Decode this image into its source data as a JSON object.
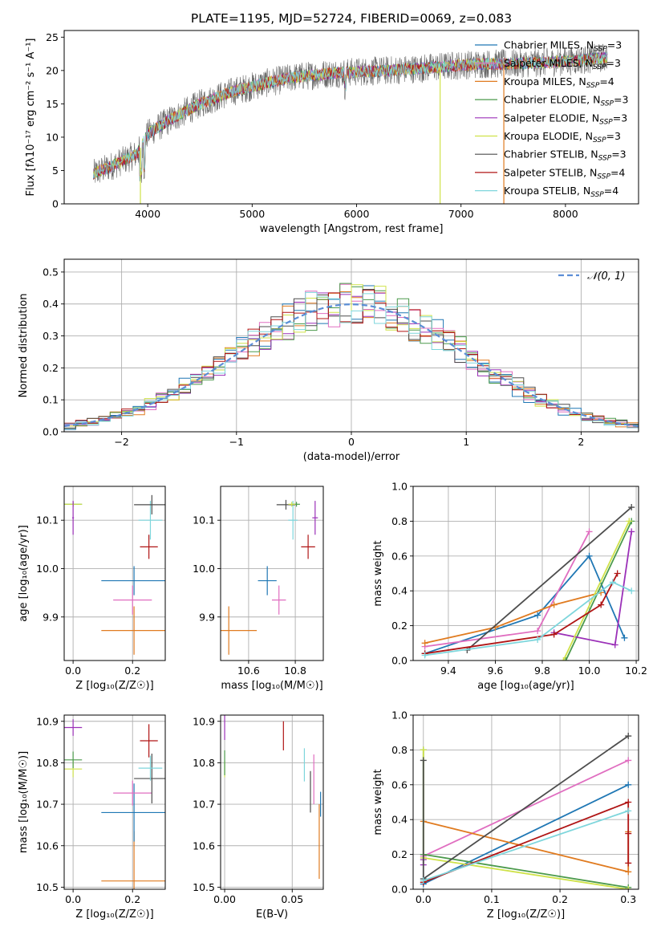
{
  "figure": {
    "title": "PLATE=1195, MJD=52724, FIBERID=0069, z=0.083"
  },
  "colors": {
    "chabrier_miles": "#1f77b4",
    "salpeter_miles": "#e06ec0",
    "kroupa_miles": "#e07b20",
    "chabrier_elodie": "#4b9a4b",
    "salpeter_elodie": "#9b30b8",
    "kroupa_elodie": "#cfe24a",
    "chabrier_stelib": "#4d4d4d",
    "salpeter_stelib": "#b01515",
    "kroupa_stelib": "#7ed6dc",
    "normal": "#5b8ed6",
    "grid": "#b0b0b0"
  },
  "chart_data": [
    {
      "id": "spectrum",
      "type": "line",
      "title": "PLATE=1195, MJD=52724, FIBERID=0069, z=0.083",
      "xlabel": "wavelength [Angstrom, rest frame]",
      "ylabel": "Flux [fλ10⁻¹⁷ erg cm⁻² s⁻¹ A⁻¹]",
      "xlim": [
        3200,
        8700
      ],
      "ylim": [
        0,
        26
      ],
      "xticks": [
        4000,
        5000,
        6000,
        7000,
        8000
      ],
      "yticks": [
        0,
        5,
        10,
        15,
        20,
        25
      ],
      "grid": false,
      "legend_position": "right",
      "legend": [
        {
          "label": "Chabrier MILES, N",
          "sub": "SSP",
          "tail": "=3",
          "color_key": "chabrier_miles"
        },
        {
          "label": "Salpeter MILES, N",
          "sub": "SSP",
          "tail": "=3",
          "color_key": "salpeter_miles"
        },
        {
          "label": "Kroupa MILES, N",
          "sub": "SSP",
          "tail": "=4",
          "color_key": "kroupa_miles"
        },
        {
          "label": "Chabrier ELODIE, N",
          "sub": "SSP",
          "tail": "=3",
          "color_key": "chabrier_elodie"
        },
        {
          "label": "Salpeter ELODIE, N",
          "sub": "SSP",
          "tail": "=3",
          "color_key": "salpeter_elodie"
        },
        {
          "label": "Kroupa ELODIE, N",
          "sub": "SSP",
          "tail": "=3",
          "color_key": "kroupa_elodie"
        },
        {
          "label": "Chabrier STELIB, N",
          "sub": "SSP",
          "tail": "=3",
          "color_key": "chabrier_stelib"
        },
        {
          "label": "Salpeter STELIB, N",
          "sub": "SSP",
          "tail": "=4",
          "color_key": "salpeter_stelib"
        },
        {
          "label": "Kroupa STELIB, N",
          "sub": "SSP",
          "tail": "=4",
          "color_key": "kroupa_stelib"
        }
      ],
      "continuum": {
        "x": [
          3480,
          3700,
          3900,
          4000,
          4200,
          4500,
          4800,
          5100,
          5400,
          5700,
          6000,
          6300,
          6600,
          6900,
          7200,
          7500,
          7800,
          8100,
          8400
        ],
        "y": [
          4.5,
          6.0,
          7.5,
          10.5,
          12.5,
          15.0,
          16.8,
          18.0,
          19.0,
          19.5,
          19.8,
          20.0,
          20.3,
          20.7,
          21.0,
          21.0,
          21.2,
          21.5,
          22.0
        ]
      },
      "dips": [
        {
          "x": 3930,
          "to": 0
        },
        {
          "x": 6800,
          "to": 0
        },
        {
          "x": 7410,
          "to": 0
        }
      ]
    },
    {
      "id": "residuals",
      "type": "histogram",
      "xlabel": "(data-model)/error",
      "ylabel": "Normed distribution",
      "xlim": [
        -2.5,
        2.5
      ],
      "ylim": [
        0,
        0.54
      ],
      "xticks": [
        -2,
        -1,
        0,
        1,
        2
      ],
      "yticks": [
        0.0,
        0.1,
        0.2,
        0.3,
        0.4,
        0.5
      ],
      "grid": true,
      "legend_position": "top-right",
      "legend": [
        {
          "label": "𝒩(0, 1)",
          "color_key": "normal",
          "style": "dashed"
        }
      ],
      "bin_width": 0.1,
      "reference_curve": "normal(0,1)"
    },
    {
      "id": "age_vs_Z",
      "type": "errorbar",
      "xlabel": "Z [log₁₀(Z/Z☉)]",
      "ylabel": "age  [log₁₀(age/yr)]",
      "xlim": [
        -0.03,
        0.31
      ],
      "ylim": [
        9.81,
        10.17
      ],
      "xticks": [
        0.0,
        0.2
      ],
      "yticks": [
        9.9,
        10.0,
        10.1
      ],
      "grid": true,
      "points": [
        {
          "model": "kroupa_miles",
          "x": 0.205,
          "y": 9.872,
          "xerr": 0.11,
          "yerr": 0.05
        },
        {
          "model": "salpeter_miles",
          "x": 0.2,
          "y": 9.935,
          "xerr": 0.065,
          "yerr": 0.03
        },
        {
          "model": "chabrier_miles",
          "x": 0.205,
          "y": 9.975,
          "xerr": 0.11,
          "yerr": 0.03
        },
        {
          "model": "salpeter_stelib",
          "x": 0.255,
          "y": 10.045,
          "xerr": 0.03,
          "yerr": 0.025
        },
        {
          "model": "kroupa_stelib",
          "x": 0.26,
          "y": 10.1,
          "xerr": 0.04,
          "yerr": 0.04
        },
        {
          "model": "chabrier_stelib",
          "x": 0.265,
          "y": 10.132,
          "xerr": 0.06,
          "yerr": 0.02
        },
        {
          "model": "chabrier_elodie",
          "x": 0.0,
          "y": 10.133,
          "xerr": 0.03,
          "yerr": 0.005
        },
        {
          "model": "kroupa_elodie",
          "x": 0.0,
          "y": 10.133,
          "xerr": 0.03,
          "yerr": 0.005
        },
        {
          "model": "salpeter_elodie",
          "x": 0.0,
          "y": 10.105,
          "xerr": 0.003,
          "yerr": 0.035
        }
      ]
    },
    {
      "id": "age_vs_mass",
      "type": "errorbar",
      "xlabel": "mass [log₁₀(M/M☉)]",
      "ylabel": "",
      "xlim": [
        10.48,
        10.92
      ],
      "ylim": [
        9.81,
        10.17
      ],
      "xticks": [
        10.6,
        10.8
      ],
      "yticks": [
        9.9,
        10.0,
        10.1
      ],
      "grid": true,
      "points": [
        {
          "model": "kroupa_miles",
          "x": 10.515,
          "y": 9.872,
          "xerr": 0.12,
          "yerr": 0.05
        },
        {
          "model": "salpeter_miles",
          "x": 10.73,
          "y": 9.935,
          "xerr": 0.03,
          "yerr": 0.03
        },
        {
          "model": "chabrier_miles",
          "x": 10.68,
          "y": 9.975,
          "xerr": 0.04,
          "yerr": 0.03
        },
        {
          "model": "salpeter_stelib",
          "x": 10.855,
          "y": 10.045,
          "xerr": 0.03,
          "yerr": 0.025
        },
        {
          "model": "kroupa_stelib",
          "x": 10.79,
          "y": 10.1,
          "xerr": 0.02,
          "yerr": 0.04
        },
        {
          "model": "chabrier_stelib",
          "x": 10.76,
          "y": 10.132,
          "xerr": 0.04,
          "yerr": 0.01
        },
        {
          "model": "chabrier_elodie",
          "x": 10.805,
          "y": 10.133,
          "xerr": 0.015,
          "yerr": 0.005
        },
        {
          "model": "kroupa_elodie",
          "x": 10.785,
          "y": 10.133,
          "xerr": 0.015,
          "yerr": 0.005
        },
        {
          "model": "salpeter_elodie",
          "x": 10.885,
          "y": 10.105,
          "xerr": 0.012,
          "yerr": 0.035
        }
      ]
    },
    {
      "id": "weight_vs_age",
      "type": "line",
      "xlabel": "age  [log₁₀(age/yr)]",
      "ylabel": "mass weight",
      "xlim": [
        9.25,
        10.21
      ],
      "ylim": [
        0,
        1
      ],
      "xticks": [
        9.4,
        9.6,
        9.8,
        10.0,
        10.2
      ],
      "yticks": [
        0.0,
        0.2,
        0.4,
        0.6,
        0.8,
        1.0
      ],
      "grid": true,
      "series": [
        {
          "model": "chabrier_miles",
          "x": [
            9.3,
            9.78,
            10.0,
            10.15
          ],
          "y": [
            0.04,
            0.26,
            0.6,
            0.13
          ]
        },
        {
          "model": "salpeter_miles",
          "x": [
            9.3,
            9.78,
            10.0
          ],
          "y": [
            0.08,
            0.17,
            0.74
          ]
        },
        {
          "model": "kroupa_miles",
          "x": [
            9.3,
            9.6,
            9.85,
            10.05
          ],
          "y": [
            0.1,
            0.19,
            0.32,
            0.39
          ]
        },
        {
          "model": "chabrier_elodie",
          "x": [
            9.9,
            10.18
          ],
          "y": [
            0.0,
            0.8
          ]
        },
        {
          "model": "salpeter_elodie",
          "x": [
            9.85,
            10.11,
            10.18
          ],
          "y": [
            0.16,
            0.09,
            0.74
          ]
        },
        {
          "model": "kroupa_elodie",
          "x": [
            9.89,
            10.17
          ],
          "y": [
            0.0,
            0.8
          ]
        },
        {
          "model": "chabrier_stelib",
          "x": [
            9.48,
            10.18
          ],
          "y": [
            0.06,
            0.88
          ]
        },
        {
          "model": "salpeter_stelib",
          "x": [
            9.3,
            9.85,
            10.05,
            10.12
          ],
          "y": [
            0.04,
            0.15,
            0.32,
            0.5
          ]
        },
        {
          "model": "kroupa_stelib",
          "x": [
            9.3,
            9.78,
            10.1,
            10.18
          ],
          "y": [
            0.03,
            0.12,
            0.45,
            0.4
          ]
        }
      ]
    },
    {
      "id": "mass_vs_Z",
      "type": "errorbar",
      "xlabel": "Z [log₁₀(Z/Z☉)]",
      "ylabel": "mass [log₁₀(M/M☉)]",
      "xlim": [
        -0.03,
        0.31
      ],
      "ylim": [
        10.495,
        10.915
      ],
      "xticks": [
        0.0,
        0.2
      ],
      "yticks": [
        10.5,
        10.6,
        10.7,
        10.8,
        10.9
      ],
      "grid": true,
      "points": [
        {
          "model": "kroupa_miles",
          "x": 0.205,
          "y": 10.515,
          "xerr": 0.11,
          "yerr": 0.12
        },
        {
          "model": "chabrier_miles",
          "x": 0.205,
          "y": 10.68,
          "xerr": 0.11,
          "yerr": 0.07
        },
        {
          "model": "salpeter_miles",
          "x": 0.2,
          "y": 10.727,
          "xerr": 0.065,
          "yerr": 0.03
        },
        {
          "model": "chabrier_stelib",
          "x": 0.265,
          "y": 10.762,
          "xerr": 0.06,
          "yerr": 0.06
        },
        {
          "model": "kroupa_stelib",
          "x": 0.26,
          "y": 10.787,
          "xerr": 0.04,
          "yerr": 0.03
        },
        {
          "model": "salpeter_stelib",
          "x": 0.255,
          "y": 10.853,
          "xerr": 0.03,
          "yerr": 0.04
        },
        {
          "model": "kroupa_elodie",
          "x": 0.0,
          "y": 10.785,
          "xerr": 0.03,
          "yerr": 0.02
        },
        {
          "model": "chabrier_elodie",
          "x": 0.0,
          "y": 10.807,
          "xerr": 0.03,
          "yerr": 0.02
        },
        {
          "model": "salpeter_elodie",
          "x": 0.0,
          "y": 10.885,
          "xerr": 0.03,
          "yerr": 0.02
        }
      ]
    },
    {
      "id": "mass_vs_EBV",
      "type": "errorbar",
      "xlabel": "E(B-V)",
      "ylabel": "",
      "xlim": [
        -0.003,
        0.073
      ],
      "ylim": [
        10.495,
        10.915
      ],
      "xticks": [
        0.0,
        0.05
      ],
      "xticklabels": [
        "0.00",
        "0.05"
      ],
      "yticks": [
        10.5,
        10.6,
        10.7,
        10.8,
        10.9
      ],
      "grid": true,
      "points": [
        {
          "model": "kroupa_miles",
          "x": 0.07,
          "y": 10.61,
          "xerr": 0.0,
          "yerr": 0.09
        },
        {
          "model": "chabrier_miles",
          "x": 0.071,
          "y": 10.7,
          "xerr": 0.0,
          "yerr": 0.03
        },
        {
          "model": "salpeter_miles",
          "x": 0.066,
          "y": 10.76,
          "xerr": 0.0,
          "yerr": 0.06
        },
        {
          "model": "chabrier_stelib",
          "x": 0.0635,
          "y": 10.73,
          "xerr": 0.0,
          "yerr": 0.05
        },
        {
          "model": "kroupa_stelib",
          "x": 0.059,
          "y": 10.795,
          "xerr": 0.0,
          "yerr": 0.04
        },
        {
          "model": "salpeter_stelib",
          "x": 0.0435,
          "y": 10.865,
          "xerr": 0.0,
          "yerr": 0.035
        },
        {
          "model": "kroupa_elodie",
          "x": 0.0,
          "y": 10.785,
          "xerr": 0.0,
          "yerr": 0.02
        },
        {
          "model": "chabrier_elodie",
          "x": 0.0,
          "y": 10.8,
          "xerr": 0.0,
          "yerr": 0.03
        },
        {
          "model": "salpeter_elodie",
          "x": 0.0,
          "y": 10.885,
          "xerr": 0.0,
          "yerr": 0.03
        }
      ]
    },
    {
      "id": "weight_vs_Z",
      "type": "line",
      "xlabel": "Z [log₁₀(Z/Z☉)]",
      "ylabel": "mass weight",
      "xlim": [
        -0.015,
        0.315
      ],
      "ylim": [
        0,
        1
      ],
      "xticks": [
        0.0,
        0.1,
        0.2,
        0.3
      ],
      "yticks": [
        0.0,
        0.2,
        0.4,
        0.6,
        0.8,
        1.0
      ],
      "grid": true,
      "series": [
        {
          "model": "chabrier_miles",
          "x": [
            0.0,
            0.3
          ],
          "y": [
            0.03,
            0.6
          ]
        },
        {
          "model": "salpeter_miles",
          "x": [
            0.0,
            0.3
          ],
          "y": [
            0.19,
            0.74
          ]
        },
        {
          "model": "kroupa_miles",
          "x": [
            0.0,
            0.3,
            0.3
          ],
          "y": [
            0.39,
            0.1,
            0.33
          ]
        },
        {
          "model": "chabrier_elodie",
          "x": [
            0.0,
            0.0,
            0.3
          ],
          "y": [
            0.8,
            0.2,
            0.01
          ]
        },
        {
          "model": "salpeter_elodie",
          "x": [
            0.0,
            0.0
          ],
          "y": [
            0.14,
            0.17
          ]
        },
        {
          "model": "kroupa_elodie",
          "x": [
            0.0,
            0.0,
            0.3
          ],
          "y": [
            0.8,
            0.18,
            0.0
          ]
        },
        {
          "model": "chabrier_stelib",
          "x": [
            0.0,
            0.0,
            0.3
          ],
          "y": [
            0.74,
            0.06,
            0.88
          ]
        },
        {
          "model": "salpeter_stelib",
          "x": [
            0.0,
            0.3,
            0.3,
            0.3
          ],
          "y": [
            0.04,
            0.5,
            0.32,
            0.15
          ]
        },
        {
          "model": "kroupa_stelib",
          "x": [
            0.0,
            0.3
          ],
          "y": [
            0.05,
            0.45
          ]
        }
      ]
    }
  ]
}
